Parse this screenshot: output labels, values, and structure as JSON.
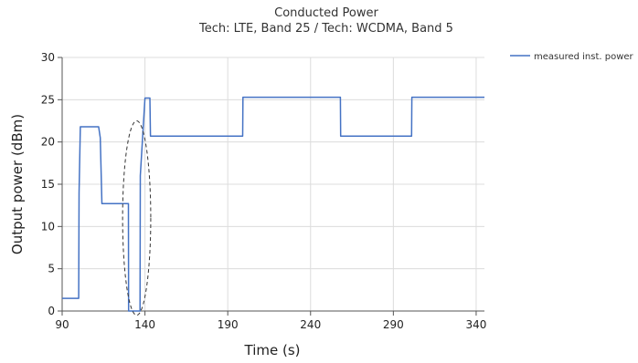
{
  "chart_data": {
    "type": "line",
    "title": "Conducted Power",
    "subtitle": "Tech: LTE, Band 25 / Tech: WCDMA, Band 5",
    "xlabel": "Time (s)",
    "ylabel": "Output power (dBm)",
    "xlim": [
      90,
      345
    ],
    "ylim": [
      0,
      30
    ],
    "xticks": [
      90,
      140,
      190,
      240,
      290,
      340
    ],
    "yticks": [
      0,
      5,
      10,
      15,
      20,
      25,
      30
    ],
    "grid": true,
    "legend_position": "top-right",
    "series": [
      {
        "name": "measured inst. power",
        "color": "#4472c4",
        "x": [
          90,
          100,
          100.2,
          101,
          112,
          113,
          114,
          130,
          130.1,
          131,
          137,
          137.2,
          140,
          140.2,
          143,
          143.3,
          199,
          199.2,
          258,
          258.2,
          301,
          301.2,
          345
        ],
        "y": [
          1.5,
          1.5,
          14,
          21.8,
          21.8,
          20.5,
          12.7,
          12.7,
          0,
          0,
          0,
          16,
          25.2,
          25.2,
          25.2,
          20.7,
          20.7,
          25.3,
          25.3,
          20.7,
          20.7,
          25.3,
          25.3
        ]
      }
    ],
    "annotations": [
      {
        "type": "dashed-ellipse",
        "center": [
          135,
          11
        ],
        "radius": [
          8.5,
          11.5
        ]
      }
    ]
  }
}
